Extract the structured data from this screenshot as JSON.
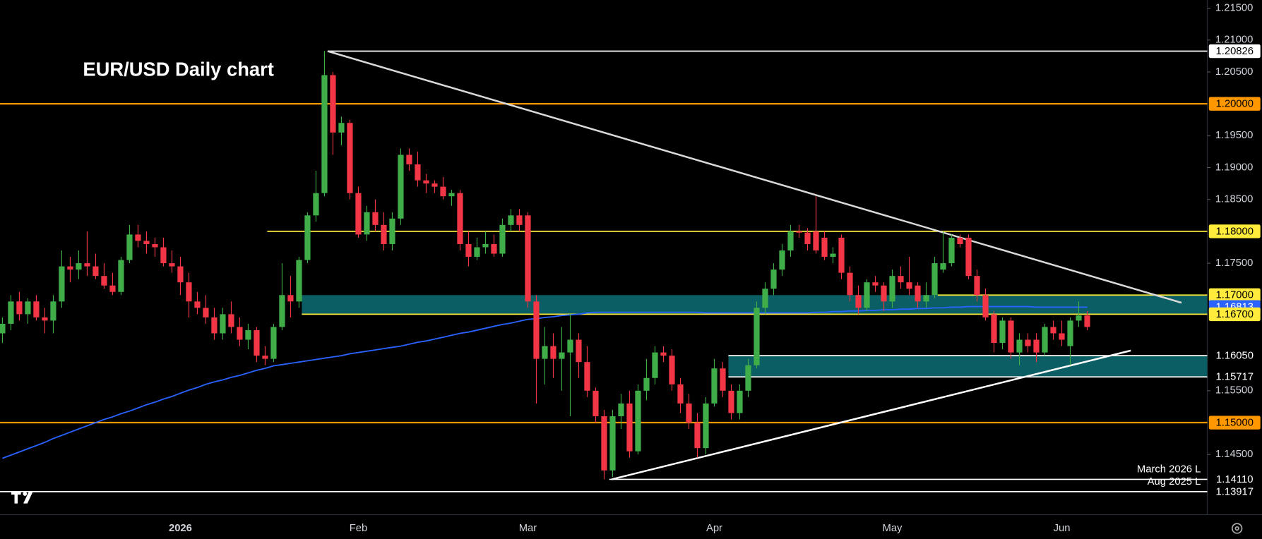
{
  "chart_data": {
    "type": "candlestick",
    "title": "EUR/USD Daily chart",
    "categories": [
      null,
      null,
      null,
      null,
      null,
      null,
      null,
      null,
      null,
      null,
      null,
      null,
      null,
      null,
      null,
      null,
      null,
      null,
      null,
      null,
      null,
      "2026",
      null,
      null,
      null,
      null,
      null,
      null,
      null,
      null,
      null,
      null,
      null,
      null,
      null,
      null,
      null,
      null,
      null,
      null,
      null,
      null,
      "Feb",
      null,
      null,
      null,
      null,
      null,
      null,
      null,
      null,
      null,
      null,
      null,
      null,
      null,
      null,
      null,
      null,
      null,
      null,
      null,
      "Mar",
      null,
      null,
      null,
      null,
      null,
      null,
      null,
      null,
      null,
      null,
      null,
      null,
      null,
      null,
      null,
      null,
      null,
      null,
      null,
      null,
      null,
      "Apr",
      null,
      null,
      null,
      null,
      null,
      null,
      null,
      null,
      null,
      null,
      null,
      null,
      null,
      null,
      null,
      null,
      null,
      null,
      null,
      null,
      "May",
      null,
      null,
      null,
      null,
      null,
      null,
      null,
      null,
      null,
      null,
      null,
      null,
      null,
      null,
      null,
      null,
      null,
      null,
      null,
      "Jun"
    ],
    "ohlc": [
      [
        1.164,
        1.1665,
        1.1625,
        1.1655
      ],
      [
        1.1655,
        1.17,
        1.1645,
        1.169
      ],
      [
        1.169,
        1.1705,
        1.166,
        1.167
      ],
      [
        1.167,
        1.1695,
        1.1655,
        1.169
      ],
      [
        1.169,
        1.17,
        1.166,
        1.1665
      ],
      [
        1.1665,
        1.168,
        1.164,
        1.166
      ],
      [
        1.166,
        1.17,
        1.164,
        1.169
      ],
      [
        1.169,
        1.177,
        1.168,
        1.1745
      ],
      [
        1.1745,
        1.176,
        1.172,
        1.174
      ],
      [
        1.174,
        1.177,
        1.1725,
        1.175
      ],
      [
        1.175,
        1.18,
        1.173,
        1.1745
      ],
      [
        1.1745,
        1.1765,
        1.1725,
        1.173
      ],
      [
        1.173,
        1.175,
        1.171,
        1.1715
      ],
      [
        1.1715,
        1.1735,
        1.17,
        1.1705
      ],
      [
        1.1705,
        1.176,
        1.17,
        1.1755
      ],
      [
        1.1755,
        1.181,
        1.175,
        1.1795
      ],
      [
        1.1795,
        1.181,
        1.1775,
        1.1785
      ],
      [
        1.1785,
        1.18,
        1.1765,
        1.178
      ],
      [
        1.178,
        1.179,
        1.176,
        1.1775
      ],
      [
        1.1775,
        1.179,
        1.1745,
        1.175
      ],
      [
        1.175,
        1.177,
        1.1735,
        1.1745
      ],
      [
        1.1745,
        1.176,
        1.17,
        1.172
      ],
      [
        1.172,
        1.1735,
        1.1665,
        1.169
      ],
      [
        1.169,
        1.1705,
        1.167,
        1.168
      ],
      [
        1.168,
        1.17,
        1.1655,
        1.1665
      ],
      [
        1.1665,
        1.168,
        1.163,
        1.164
      ],
      [
        1.164,
        1.168,
        1.163,
        1.167
      ],
      [
        1.167,
        1.169,
        1.164,
        1.165
      ],
      [
        1.165,
        1.1665,
        1.162,
        1.163
      ],
      [
        1.163,
        1.1655,
        1.1615,
        1.1645
      ],
      [
        1.1645,
        1.165,
        1.1595,
        1.1605
      ],
      [
        1.1605,
        1.162,
        1.159,
        1.16
      ],
      [
        1.16,
        1.1655,
        1.1595,
        1.165
      ],
      [
        1.165,
        1.175,
        1.1645,
        1.17
      ],
      [
        1.17,
        1.173,
        1.1665,
        1.169
      ],
      [
        1.169,
        1.176,
        1.168,
        1.1755
      ],
      [
        1.1755,
        1.183,
        1.175,
        1.1825
      ],
      [
        1.1825,
        1.1895,
        1.1815,
        1.186
      ],
      [
        1.186,
        1.2083,
        1.1855,
        1.2045
      ],
      [
        1.2045,
        1.205,
        1.192,
        1.1955
      ],
      [
        1.1955,
        1.198,
        1.1935,
        1.197
      ],
      [
        1.197,
        1.1975,
        1.185,
        1.186
      ],
      [
        1.186,
        1.187,
        1.179,
        1.1795
      ],
      [
        1.1795,
        1.184,
        1.1785,
        1.183
      ],
      [
        1.183,
        1.185,
        1.18,
        1.181
      ],
      [
        1.181,
        1.183,
        1.177,
        1.178
      ],
      [
        1.178,
        1.183,
        1.177,
        1.182
      ],
      [
        1.182,
        1.193,
        1.181,
        1.192
      ],
      [
        1.192,
        1.193,
        1.1895,
        1.1905
      ],
      [
        1.1905,
        1.1925,
        1.187,
        1.188
      ],
      [
        1.188,
        1.189,
        1.186,
        1.1875
      ],
      [
        1.1875,
        1.188,
        1.186,
        1.187
      ],
      [
        1.187,
        1.1885,
        1.185,
        1.1855
      ],
      [
        1.1855,
        1.1865,
        1.184,
        1.186
      ],
      [
        1.186,
        1.1865,
        1.177,
        1.178
      ],
      [
        1.178,
        1.18,
        1.1745,
        1.176
      ],
      [
        1.176,
        1.179,
        1.1755,
        1.1775
      ],
      [
        1.1775,
        1.18,
        1.1765,
        1.178
      ],
      [
        1.178,
        1.1795,
        1.176,
        1.1765
      ],
      [
        1.1765,
        1.182,
        1.176,
        1.181
      ],
      [
        1.181,
        1.1835,
        1.18,
        1.1825
      ],
      [
        1.1825,
        1.1835,
        1.18,
        1.181
      ],
      [
        1.1825,
        1.183,
        1.168,
        1.169
      ],
      [
        1.169,
        1.17,
        1.153,
        1.16
      ],
      [
        1.16,
        1.165,
        1.156,
        1.162
      ],
      [
        1.162,
        1.164,
        1.157,
        1.16
      ],
      [
        1.16,
        1.165,
        1.155,
        1.161
      ],
      [
        1.161,
        1.167,
        1.151,
        1.163
      ],
      [
        1.163,
        1.164,
        1.157,
        1.1595
      ],
      [
        1.1595,
        1.162,
        1.154,
        1.155
      ],
      [
        1.155,
        1.1555,
        1.15,
        1.151
      ],
      [
        1.151,
        1.152,
        1.1411,
        1.1425
      ],
      [
        1.1425,
        1.152,
        1.1415,
        1.151
      ],
      [
        1.151,
        1.1545,
        1.149,
        1.153
      ],
      [
        1.153,
        1.155,
        1.1445,
        1.1455
      ],
      [
        1.1455,
        1.156,
        1.145,
        1.155
      ],
      [
        1.155,
        1.16,
        1.1535,
        1.157
      ],
      [
        1.157,
        1.162,
        1.156,
        1.161
      ],
      [
        1.161,
        1.162,
        1.1595,
        1.1605
      ],
      [
        1.1605,
        1.1615,
        1.155,
        1.156
      ],
      [
        1.156,
        1.157,
        1.1515,
        1.153
      ],
      [
        1.153,
        1.1545,
        1.149,
        1.15
      ],
      [
        1.15,
        1.1515,
        1.1445,
        1.146
      ],
      [
        1.146,
        1.154,
        1.145,
        1.153
      ],
      [
        1.153,
        1.16,
        1.1525,
        1.1585
      ],
      [
        1.1585,
        1.1595,
        1.154,
        1.155
      ],
      [
        1.155,
        1.156,
        1.1505,
        1.1515
      ],
      [
        1.1515,
        1.156,
        1.1505,
        1.155
      ],
      [
        1.155,
        1.16,
        1.154,
        1.159
      ],
      [
        1.159,
        1.169,
        1.1585,
        1.168
      ],
      [
        1.168,
        1.172,
        1.167,
        1.171
      ],
      [
        1.171,
        1.175,
        1.17,
        1.174
      ],
      [
        1.174,
        1.178,
        1.173,
        1.177
      ],
      [
        1.177,
        1.181,
        1.176,
        1.18
      ],
      [
        1.18,
        1.181,
        1.179,
        1.1798
      ],
      [
        1.1798,
        1.1805,
        1.177,
        1.178
      ],
      [
        1.18,
        1.1855,
        1.1765,
        1.177
      ],
      [
        1.179,
        1.18,
        1.1755,
        1.176
      ],
      [
        1.176,
        1.1775,
        1.175,
        1.1765
      ],
      [
        1.179,
        1.1795,
        1.1725,
        1.1735
      ],
      [
        1.1735,
        1.1745,
        1.169,
        1.17
      ],
      [
        1.17,
        1.1715,
        1.167,
        1.168
      ],
      [
        1.168,
        1.1725,
        1.1675,
        1.172
      ],
      [
        1.172,
        1.173,
        1.1705,
        1.1715
      ],
      [
        1.1715,
        1.172,
        1.1675,
        1.169
      ],
      [
        1.169,
        1.174,
        1.168,
        1.173
      ],
      [
        1.173,
        1.1745,
        1.171,
        1.172
      ],
      [
        1.172,
        1.176,
        1.17,
        1.171
      ],
      [
        1.1715,
        1.172,
        1.168,
        1.169
      ],
      [
        1.169,
        1.172,
        1.168,
        1.17
      ],
      [
        1.17,
        1.176,
        1.1695,
        1.175
      ],
      [
        1.174,
        1.18,
        1.1735,
        1.175
      ],
      [
        1.175,
        1.1795,
        1.1745,
        1.179
      ],
      [
        1.179,
        1.1795,
        1.1775,
        1.178
      ],
      [
        1.179,
        1.1795,
        1.1725,
        1.173
      ],
      [
        1.173,
        1.174,
        1.169,
        1.17
      ],
      [
        1.17,
        1.171,
        1.166,
        1.1665
      ],
      [
        1.167,
        1.1675,
        1.161,
        1.1625
      ],
      [
        1.1625,
        1.1665,
        1.1615,
        1.166
      ],
      [
        1.166,
        1.1665,
        1.16,
        1.161
      ],
      [
        1.161,
        1.164,
        1.159,
        1.163
      ],
      [
        1.163,
        1.164,
        1.161,
        1.162
      ],
      [
        1.163,
        1.164,
        1.1595,
        1.161
      ],
      [
        1.161,
        1.1655,
        1.1605,
        1.165
      ],
      [
        1.165,
        1.166,
        1.163,
        1.164
      ],
      [
        1.164,
        1.166,
        1.162,
        1.163
      ],
      [
        1.162,
        1.1665,
        1.159,
        1.166
      ],
      [
        1.166,
        1.169,
        1.165,
        1.1668
      ],
      [
        1.1668,
        1.1675,
        1.1645,
        1.165
      ]
    ],
    "up_color": "#3fae49",
    "down_color": "#f23645",
    "ma_color": "#2962ff",
    "ma_values": [
      1.1444,
      1.1449,
      1.1454,
      1.1459,
      1.1464,
      1.1469,
      1.1475,
      1.148,
      1.1485,
      1.149,
      1.1495,
      1.15,
      1.1505,
      1.1509,
      1.1514,
      1.1518,
      1.1523,
      1.1528,
      1.1532,
      1.1537,
      1.1541,
      1.1546,
      1.1551,
      1.1555,
      1.156,
      1.1564,
      1.1567,
      1.1571,
      1.1574,
      1.1578,
      1.1582,
      1.1585,
      1.1589,
      1.1591,
      1.1593,
      1.1595,
      1.1597,
      1.1599,
      1.1601,
      1.1603,
      1.1605,
      1.1608,
      1.161,
      1.1612,
      1.1614,
      1.1616,
      1.1618,
      1.162,
      1.1623,
      1.1626,
      1.1628,
      1.1631,
      1.1634,
      1.1637,
      1.164,
      1.1642,
      1.1645,
      1.1648,
      1.1651,
      1.1654,
      1.1656,
      1.1659,
      1.1662,
      1.1663,
      1.1665,
      1.1666,
      1.1668,
      1.1669,
      1.167,
      1.1672,
      1.1673,
      1.1673,
      1.1673,
      1.1673,
      1.1673,
      1.1673,
      1.1673,
      1.1673,
      1.1673,
      1.1673,
      1.1673,
      1.1673,
      1.1673,
      1.1672,
      1.1672,
      1.1672,
      1.1672,
      1.1672,
      1.1672,
      1.1672,
      1.1672,
      1.1672,
      1.1672,
      1.1672,
      1.1672,
      1.1672,
      1.1673,
      1.1673,
      1.1674,
      1.1674,
      1.1675,
      1.1675,
      1.1676,
      1.1676,
      1.1677,
      1.1677,
      1.1678,
      1.1678,
      1.1679,
      1.1679,
      1.168,
      1.168,
      1.1681,
      1.1681,
      1.1682,
      1.1682,
      1.1682,
      1.1682,
      1.1682,
      1.1682,
      1.1682,
      1.1682,
      1.1681,
      1.1681,
      1.1681,
      1.1681,
      1.1681,
      1.1681,
      1.1681
    ],
    "ylim": [
      1.13555,
      1.21626
    ],
    "yticks": [
      {
        "value": 1.215,
        "label": "1.21500"
      },
      {
        "value": 1.21,
        "label": "1.21000"
      },
      {
        "value": 1.205,
        "label": "1.20500"
      },
      {
        "value": 1.195,
        "label": "1.19500"
      },
      {
        "value": 1.19,
        "label": "1.19000"
      },
      {
        "value": 1.185,
        "label": "1.18500"
      },
      {
        "value": 1.175,
        "label": "1.17500"
      },
      {
        "value": 1.155,
        "label": "1.15500"
      },
      {
        "value": 1.145,
        "label": "1.14500"
      }
    ],
    "levels": [
      {
        "value": 1.20826,
        "label": "1.20826",
        "color": "#ffffff",
        "boxed": true,
        "line": true
      },
      {
        "value": 1.2,
        "label": "1.20000",
        "color": "#ff9800",
        "boxed": true,
        "line": true
      },
      {
        "value": 1.18,
        "label": "1.18000",
        "color": "#ffeb3b",
        "boxed": true,
        "line": true
      },
      {
        "value": 1.17,
        "label": "1.17000",
        "color": "#ffeb3b",
        "boxed": true,
        "line": true
      },
      {
        "value": 1.16813,
        "label": "1.16813",
        "color": "#2962ff",
        "boxed": true,
        "line": false
      },
      {
        "value": 1.167,
        "label": "1.16700",
        "color": "#ffeb3b",
        "boxed": true,
        "line": true
      },
      {
        "value": 1.1605,
        "label": "1.16050",
        "color": "#ffffff",
        "boxed": false,
        "line": true
      },
      {
        "value": 1.15717,
        "label": "1.15717",
        "color": "#ffffff",
        "boxed": false,
        "line": true
      },
      {
        "value": 1.15,
        "label": "1.15000",
        "color": "#ff9800",
        "boxed": true,
        "line": true
      },
      {
        "value": 1.1411,
        "label": "1.14110",
        "color": "#ffffff",
        "boxed": false,
        "line": true
      },
      {
        "value": 1.13917,
        "label": "1.13917",
        "color": "#ffffff",
        "boxed": false,
        "line": true
      }
    ],
    "zones": [
      {
        "from": 1.167,
        "to": 1.17,
        "color": "#0b5e63"
      },
      {
        "from": 1.15717,
        "to": 1.1605,
        "color": "#0b5e63"
      }
    ],
    "trendlines": [
      {
        "from": 1.20826,
        "to": 1.1688,
        "color": "#d9d9d9"
      },
      {
        "from": 1.1411,
        "to": 1.1613,
        "color": "#ffffff"
      }
    ],
    "annotations": [
      "March 2026 L",
      "Aug 2025 L"
    ]
  }
}
